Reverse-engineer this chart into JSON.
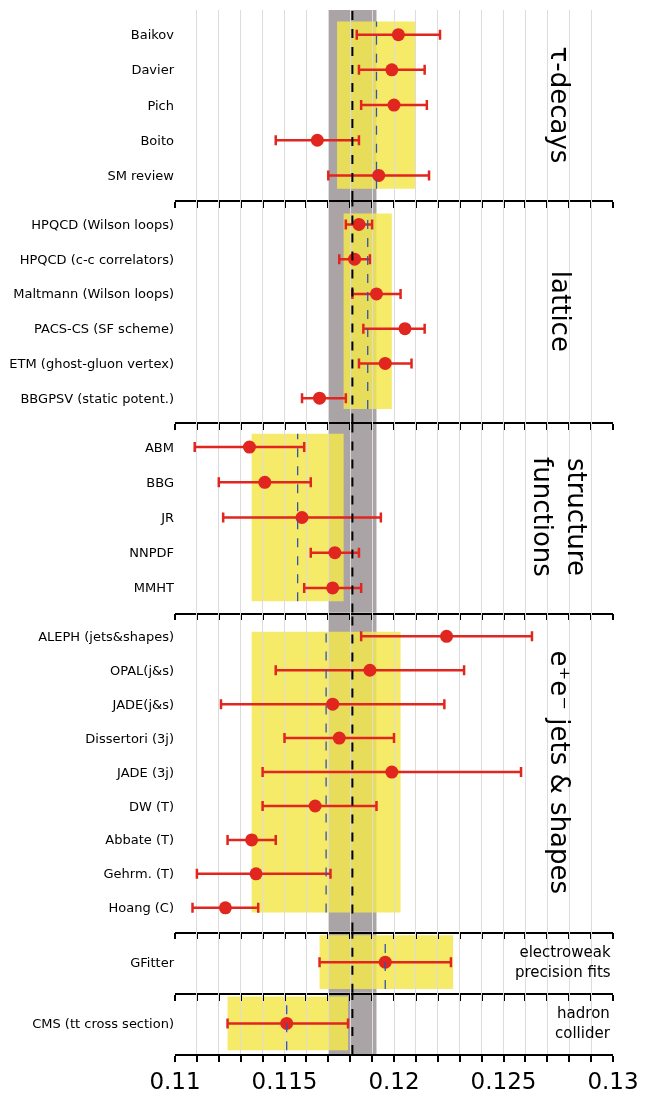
{
  "chart_data": [
    {
      "type": "scatter",
      "orientation": "horizontal",
      "title": "τ-decays",
      "categories": [
        "Baikov",
        "Davier",
        "Pich",
        "Boito",
        "SM review"
      ],
      "values": [
        0.1202,
        0.1199,
        0.12,
        0.1165,
        0.1193
      ],
      "errors": [
        [
          0.1183,
          0.1221
        ],
        [
          0.1184,
          0.1214
        ],
        [
          0.1185,
          0.1215
        ],
        [
          0.1146,
          0.1184
        ],
        [
          0.117,
          0.1216
        ]
      ],
      "color": "#e0261e",
      "marker": "circle",
      "xlim": [
        0.11,
        0.13
      ],
      "xticks": [
        0.11,
        {
          "value": 0.111,
          "label": null
        },
        {
          "value": 0.112,
          "label": null
        },
        {
          "value": 0.113,
          "label": null
        },
        {
          "value": 0.114,
          "label": null
        },
        0.115,
        {
          "value": 0.116,
          "label": null
        },
        {
          "value": 0.117,
          "label": null
        },
        {
          "value": 0.118,
          "label": null
        },
        {
          "value": 0.119,
          "label": null
        },
        0.12,
        {
          "value": 0.121,
          "label": null
        },
        {
          "value": 0.122,
          "label": null
        },
        {
          "value": 0.123,
          "label": null
        },
        {
          "value": 0.124,
          "label": null
        },
        0.125,
        {
          "value": 0.126,
          "label": null
        },
        {
          "value": 0.127,
          "label": null
        },
        {
          "value": 0.128,
          "label": null
        },
        {
          "value": 0.129,
          "label": null
        },
        0.13
      ],
      "grid": "x",
      "tick_labels": "y",
      "bands": [
        {
          "axis": "x",
          "from": 0.117,
          "to": 0.1192,
          "color": "#aaa4a7"
        },
        {
          "axis": "x",
          "from": 0.1174,
          "to": 0.121,
          "color": "#f3e84e"
        }
      ],
      "ref_lines": [
        {
          "axis": "x",
          "value": 0.1181,
          "color": "#000000",
          "line_style": "dashed"
        },
        {
          "axis": "x",
          "value": 0.1192,
          "color": "#3552b0",
          "line_style": "dashed"
        }
      ]
    },
    {
      "type": "scatter",
      "orientation": "horizontal",
      "title": "lattice",
      "categories": [
        "HPQCD (Wilson loops)",
        "HPQCD (c-c correlators)",
        "Maltmann (Wilson loops)",
        "PACS-CS (SF scheme)",
        "ETM (ghost-gluon vertex)",
        "BBGPSV (static potent.)"
      ],
      "values": [
        0.1184,
        0.1182,
        0.1192,
        0.1205,
        0.1196,
        0.1166
      ],
      "errors": [
        [
          0.1178,
          0.119
        ],
        [
          0.1175,
          0.1189
        ],
        [
          0.1181,
          0.1203
        ],
        [
          0.1186,
          0.1214
        ],
        [
          0.1184,
          0.1208
        ],
        [
          0.1158,
          0.1178
        ]
      ],
      "color": "#e0261e",
      "marker": "circle",
      "xlim": [
        0.11,
        0.13
      ],
      "xticks": [
        0.11,
        {
          "value": 0.111,
          "label": null
        },
        {
          "value": 0.112,
          "label": null
        },
        {
          "value": 0.113,
          "label": null
        },
        {
          "value": 0.114,
          "label": null
        },
        0.115,
        {
          "value": 0.116,
          "label": null
        },
        {
          "value": 0.117,
          "label": null
        },
        {
          "value": 0.118,
          "label": null
        },
        {
          "value": 0.119,
          "label": null
        },
        0.12,
        {
          "value": 0.121,
          "label": null
        },
        {
          "value": 0.122,
          "label": null
        },
        {
          "value": 0.123,
          "label": null
        },
        {
          "value": 0.124,
          "label": null
        },
        0.125,
        {
          "value": 0.126,
          "label": null
        },
        {
          "value": 0.127,
          "label": null
        },
        {
          "value": 0.128,
          "label": null
        },
        {
          "value": 0.129,
          "label": null
        },
        0.13
      ],
      "grid": "x",
      "tick_labels": "y",
      "bands": [
        {
          "axis": "x",
          "from": 0.117,
          "to": 0.1192,
          "color": "#aaa4a7"
        },
        {
          "axis": "x",
          "from": 0.1177,
          "to": 0.1199,
          "color": "#f3e84e"
        }
      ],
      "ref_lines": [
        {
          "axis": "x",
          "value": 0.1181,
          "color": "#000000",
          "line_style": "dashed"
        },
        {
          "axis": "x",
          "value": 0.1188,
          "color": "#3552b0",
          "line_style": "dashed"
        }
      ]
    },
    {
      "type": "scatter",
      "orientation": "horizontal",
      "title": "structure functions",
      "categories": [
        "ABM",
        "BBG",
        "JR",
        "NNPDF",
        "MMHT"
      ],
      "values": [
        0.1134,
        0.1141,
        0.1158,
        0.1173,
        0.1172
      ],
      "errors": [
        [
          0.1109,
          0.1159
        ],
        [
          0.112,
          0.1162
        ],
        [
          0.1122,
          0.1194
        ],
        [
          0.1162,
          0.1184
        ],
        [
          0.1159,
          0.1185
        ]
      ],
      "color": "#e0261e",
      "marker": "circle",
      "xlim": [
        0.11,
        0.13
      ],
      "xticks": [
        0.11,
        {
          "value": 0.111,
          "label": null
        },
        {
          "value": 0.112,
          "label": null
        },
        {
          "value": 0.113,
          "label": null
        },
        {
          "value": 0.114,
          "label": null
        },
        0.115,
        {
          "value": 0.116,
          "label": null
        },
        {
          "value": 0.117,
          "label": null
        },
        {
          "value": 0.118,
          "label": null
        },
        {
          "value": 0.119,
          "label": null
        },
        0.12,
        {
          "value": 0.121,
          "label": null
        },
        {
          "value": 0.122,
          "label": null
        },
        {
          "value": 0.123,
          "label": null
        },
        {
          "value": 0.124,
          "label": null
        },
        0.125,
        {
          "value": 0.126,
          "label": null
        },
        {
          "value": 0.127,
          "label": null
        },
        {
          "value": 0.128,
          "label": null
        },
        {
          "value": 0.129,
          "label": null
        },
        0.13
      ],
      "grid": "x",
      "tick_labels": "y",
      "bands": [
        {
          "axis": "x",
          "from": 0.117,
          "to": 0.1192,
          "color": "#aaa4a7"
        },
        {
          "axis": "x",
          "from": 0.1135,
          "to": 0.1177,
          "color": "#f3e84e"
        }
      ],
      "ref_lines": [
        {
          "axis": "x",
          "value": 0.1181,
          "color": "#000000",
          "line_style": "dashed"
        },
        {
          "axis": "x",
          "value": 0.1156,
          "color": "#3552b0",
          "line_style": "dashed"
        }
      ]
    },
    {
      "type": "scatter",
      "orientation": "horizontal",
      "title": "e⁺e⁻ jets & shapes",
      "categories": [
        "ALEPH (jets&shapes)",
        "OPAL(j&s)",
        "JADE(j&s)",
        "Dissertori (3j)",
        "JADE (3j)",
        "DW (T)",
        "Abbate (T)",
        "Gehrm. (T)",
        "Hoang (C)"
      ],
      "values": [
        0.1224,
        0.1189,
        0.1172,
        0.1175,
        0.1199,
        0.1164,
        0.1135,
        0.1137,
        0.1123
      ],
      "errors": [
        [
          0.1185,
          0.1263
        ],
        [
          0.1146,
          0.1232
        ],
        [
          0.1121,
          0.1223
        ],
        [
          0.115,
          0.12
        ],
        [
          0.114,
          0.1258
        ],
        [
          0.114,
          0.1192
        ],
        [
          0.1124,
          0.1146
        ],
        [
          0.111,
          0.1171
        ],
        [
          0.1108,
          0.1138
        ]
      ],
      "color": "#e0261e",
      "marker": "circle",
      "xlim": [
        0.11,
        0.13
      ],
      "xticks": [
        0.11,
        {
          "value": 0.111,
          "label": null
        },
        {
          "value": 0.112,
          "label": null
        },
        {
          "value": 0.113,
          "label": null
        },
        {
          "value": 0.114,
          "label": null
        },
        0.115,
        {
          "value": 0.116,
          "label": null
        },
        {
          "value": 0.117,
          "label": null
        },
        {
          "value": 0.118,
          "label": null
        },
        {
          "value": 0.119,
          "label": null
        },
        0.12,
        {
          "value": 0.121,
          "label": null
        },
        {
          "value": 0.122,
          "label": null
        },
        {
          "value": 0.123,
          "label": null
        },
        {
          "value": 0.124,
          "label": null
        },
        0.125,
        {
          "value": 0.126,
          "label": null
        },
        {
          "value": 0.127,
          "label": null
        },
        {
          "value": 0.128,
          "label": null
        },
        {
          "value": 0.129,
          "label": null
        },
        0.13
      ],
      "grid": "x",
      "tick_labels": "y",
      "bands": [
        {
          "axis": "x",
          "from": 0.117,
          "to": 0.1192,
          "color": "#aaa4a7"
        },
        {
          "axis": "x",
          "from": 0.1135,
          "to": 0.1203,
          "color": "#f3e84e"
        }
      ],
      "ref_lines": [
        {
          "axis": "x",
          "value": 0.1181,
          "color": "#000000",
          "line_style": "dashed"
        },
        {
          "axis": "x",
          "value": 0.1169,
          "color": "#3552b0",
          "line_style": "dashed"
        }
      ]
    },
    {
      "type": "scatter",
      "orientation": "horizontal",
      "title": "electroweak precision fits",
      "categories": [
        "GFitter"
      ],
      "values": [
        0.1196
      ],
      "errors": [
        [
          0.1166,
          0.1226
        ]
      ],
      "color": "#e0261e",
      "marker": "circle",
      "xlim": [
        0.11,
        0.13
      ],
      "xticks": [
        0.11,
        {
          "value": 0.111,
          "label": null
        },
        {
          "value": 0.112,
          "label": null
        },
        {
          "value": 0.113,
          "label": null
        },
        {
          "value": 0.114,
          "label": null
        },
        0.115,
        {
          "value": 0.116,
          "label": null
        },
        {
          "value": 0.117,
          "label": null
        },
        {
          "value": 0.118,
          "label": null
        },
        {
          "value": 0.119,
          "label": null
        },
        0.12,
        {
          "value": 0.121,
          "label": null
        },
        {
          "value": 0.122,
          "label": null
        },
        {
          "value": 0.123,
          "label": null
        },
        {
          "value": 0.124,
          "label": null
        },
        0.125,
        {
          "value": 0.126,
          "label": null
        },
        {
          "value": 0.127,
          "label": null
        },
        {
          "value": 0.128,
          "label": null
        },
        {
          "value": 0.129,
          "label": null
        },
        0.13
      ],
      "grid": "x",
      "tick_labels": "y",
      "bands": [
        {
          "axis": "x",
          "from": 0.117,
          "to": 0.1192,
          "color": "#aaa4a7"
        },
        {
          "axis": "x",
          "from": 0.1166,
          "to": 0.1227,
          "color": "#f3e84e"
        }
      ],
      "ref_lines": [
        {
          "axis": "x",
          "value": 0.1181,
          "color": "#000000",
          "line_style": "dashed"
        },
        {
          "axis": "x",
          "value": 0.1196,
          "color": "#3552b0",
          "line_style": "dashed"
        }
      ]
    },
    {
      "type": "scatter",
      "orientation": "horizontal",
      "title": "hadron collider",
      "categories": [
        "CMS (tt cross section)"
      ],
      "values": [
        0.1151
      ],
      "errors": [
        [
          0.1124,
          0.1179
        ]
      ],
      "color": "#e0261e",
      "marker": "circle",
      "xlim": [
        0.11,
        0.13
      ],
      "xticks": [
        0.11,
        {
          "value": 0.111,
          "label": null
        },
        {
          "value": 0.112,
          "label": null
        },
        {
          "value": 0.113,
          "label": null
        },
        {
          "value": 0.114,
          "label": null
        },
        0.115,
        {
          "value": 0.116,
          "label": null
        },
        {
          "value": 0.117,
          "label": null
        },
        {
          "value": 0.118,
          "label": null
        },
        {
          "value": 0.119,
          "label": null
        },
        0.12,
        {
          "value": 0.121,
          "label": null
        },
        {
          "value": 0.122,
          "label": null
        },
        {
          "value": 0.123,
          "label": null
        },
        {
          "value": 0.124,
          "label": null
        },
        0.125,
        {
          "value": 0.126,
          "label": null
        },
        {
          "value": 0.127,
          "label": null
        },
        {
          "value": 0.128,
          "label": null
        },
        {
          "value": 0.129,
          "label": null
        },
        0.13
      ],
      "grid": "x",
      "bands": [
        {
          "axis": "x",
          "from": 0.117,
          "to": 0.1192,
          "color": "#aaa4a7"
        },
        {
          "axis": "x",
          "from": 0.1124,
          "to": 0.1179,
          "color": "#f3e84e"
        }
      ],
      "ref_lines": [
        {
          "axis": "x",
          "value": 0.1181,
          "color": "#000000",
          "line_style": "dashed"
        },
        {
          "axis": "x",
          "value": 0.1151,
          "color": "#3552b0",
          "line_style": "dashed"
        }
      ]
    }
  ]
}
